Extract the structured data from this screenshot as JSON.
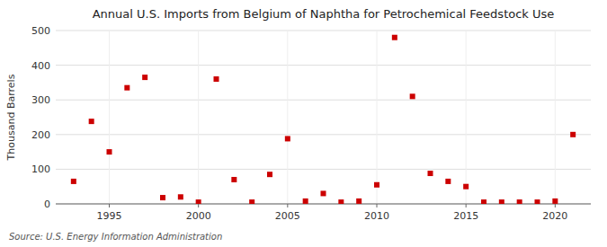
{
  "chart_data": {
    "type": "scatter",
    "title": "Annual U.S. Imports from Belgium of Naphtha for Petrochemical Feedstock Use",
    "ylabel": "Thousand Barrels",
    "source": "Source: U.S. Energy Information Administration",
    "x": [
      1993,
      1994,
      1995,
      1996,
      1997,
      1998,
      1999,
      2000,
      2001,
      2002,
      2003,
      2004,
      2005,
      2006,
      2007,
      2008,
      2009,
      2010,
      2011,
      2012,
      2013,
      2014,
      2015,
      2016,
      2017,
      2018,
      2019,
      2020,
      2021
    ],
    "values": [
      65,
      238,
      150,
      335,
      365,
      18,
      20,
      5,
      360,
      70,
      5,
      85,
      188,
      8,
      30,
      5,
      8,
      55,
      480,
      310,
      88,
      65,
      50,
      5,
      5,
      5,
      5,
      8,
      200
    ],
    "color": "#cc0000",
    "marker": "square",
    "xlim": [
      1992,
      2022
    ],
    "xticks": [
      1995,
      2000,
      2005,
      2010,
      2015,
      2020
    ],
    "ylim": [
      0,
      500
    ],
    "yticks": [
      0,
      100,
      200,
      300,
      400,
      500
    ],
    "grid": true
  }
}
